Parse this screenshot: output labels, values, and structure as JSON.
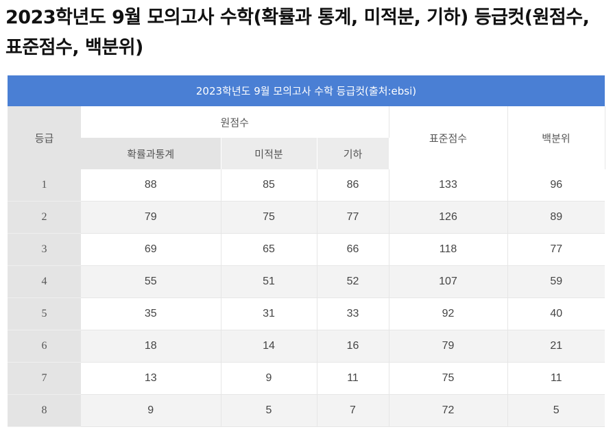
{
  "page": {
    "title": "2023학년도 9월 모의고사 수학(확률과 통계, 미적분, 기하) 등급컷(원점수, 표준점수, 백분위)"
  },
  "table": {
    "caption": "2023학년도 9월 모의고사 수학 등급컷(출처:ebsi)",
    "headers": {
      "grade": "등급",
      "raw_score": "원점수",
      "prob_stats": "확률과통계",
      "calculus": "미적분",
      "geometry": "기하",
      "standard_score": "표준점수",
      "percentile": "백분위"
    },
    "rows": [
      {
        "grade": "1",
        "prob_stats": "88",
        "calculus": "85",
        "geometry": "86",
        "standard_score": "133",
        "percentile": "96"
      },
      {
        "grade": "2",
        "prob_stats": "79",
        "calculus": "75",
        "geometry": "77",
        "standard_score": "126",
        "percentile": "89"
      },
      {
        "grade": "3",
        "prob_stats": "69",
        "calculus": "65",
        "geometry": "66",
        "standard_score": "118",
        "percentile": "77"
      },
      {
        "grade": "4",
        "prob_stats": "55",
        "calculus": "51",
        "geometry": "52",
        "standard_score": "107",
        "percentile": "59"
      },
      {
        "grade": "5",
        "prob_stats": "35",
        "calculus": "31",
        "geometry": "33",
        "standard_score": "92",
        "percentile": "40"
      },
      {
        "grade": "6",
        "prob_stats": "18",
        "calculus": "14",
        "geometry": "16",
        "standard_score": "79",
        "percentile": "21"
      },
      {
        "grade": "7",
        "prob_stats": "13",
        "calculus": "9",
        "geometry": "11",
        "standard_score": "75",
        "percentile": "11"
      },
      {
        "grade": "8",
        "prob_stats": "9",
        "calculus": "5",
        "geometry": "7",
        "standard_score": "72",
        "percentile": "5"
      }
    ]
  },
  "colors": {
    "caption_bg": "#4a7fd4",
    "grade_col_bg": "#e4e4e4",
    "even_row_bg": "#f3f3f3"
  }
}
